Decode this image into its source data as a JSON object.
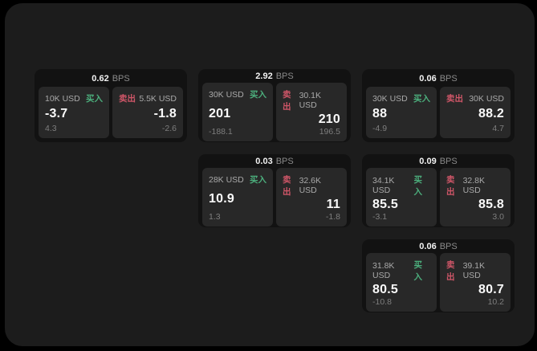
{
  "labels": {
    "buy": "买入",
    "sell": "卖出",
    "bps_unit": "BPS"
  },
  "colors": {
    "background": "#000000",
    "surface": "#1c1c1c",
    "card": "#121212",
    "panel": "#282828",
    "buy_green": "#4caf7d",
    "sell_red": "#cf5668"
  },
  "cards": [
    {
      "bps": "0.62",
      "buy": {
        "size": "10K USD",
        "value": "-3.7",
        "sub": "4.3"
      },
      "sell": {
        "size": "5.5K USD",
        "value": "-1.8",
        "sub": "-2.6"
      }
    },
    {
      "bps": "2.92",
      "buy": {
        "size": "30K USD",
        "value": "201",
        "sub": "-188.1"
      },
      "sell": {
        "size": "30.1K USD",
        "value": "210",
        "sub": "196.5"
      }
    },
    {
      "bps": "0.06",
      "buy": {
        "size": "30K USD",
        "value": "88",
        "sub": "-4.9"
      },
      "sell": {
        "size": "30K USD",
        "value": "88.2",
        "sub": "4.7"
      }
    },
    {
      "bps": "0.03",
      "buy": {
        "size": "28K USD",
        "value": "10.9",
        "sub": "1.3"
      },
      "sell": {
        "size": "32.6K USD",
        "value": "11",
        "sub": "-1.8"
      }
    },
    {
      "bps": "0.09",
      "buy": {
        "size": "34.1K USD",
        "value": "85.5",
        "sub": "-3.1"
      },
      "sell": {
        "size": "32.8K USD",
        "value": "85.8",
        "sub": "3.0"
      }
    },
    {
      "bps": "0.06",
      "buy": {
        "size": "31.8K USD",
        "value": "80.5",
        "sub": "-10.8"
      },
      "sell": {
        "size": "39.1K USD",
        "value": "80.7",
        "sub": "10.2"
      }
    }
  ]
}
